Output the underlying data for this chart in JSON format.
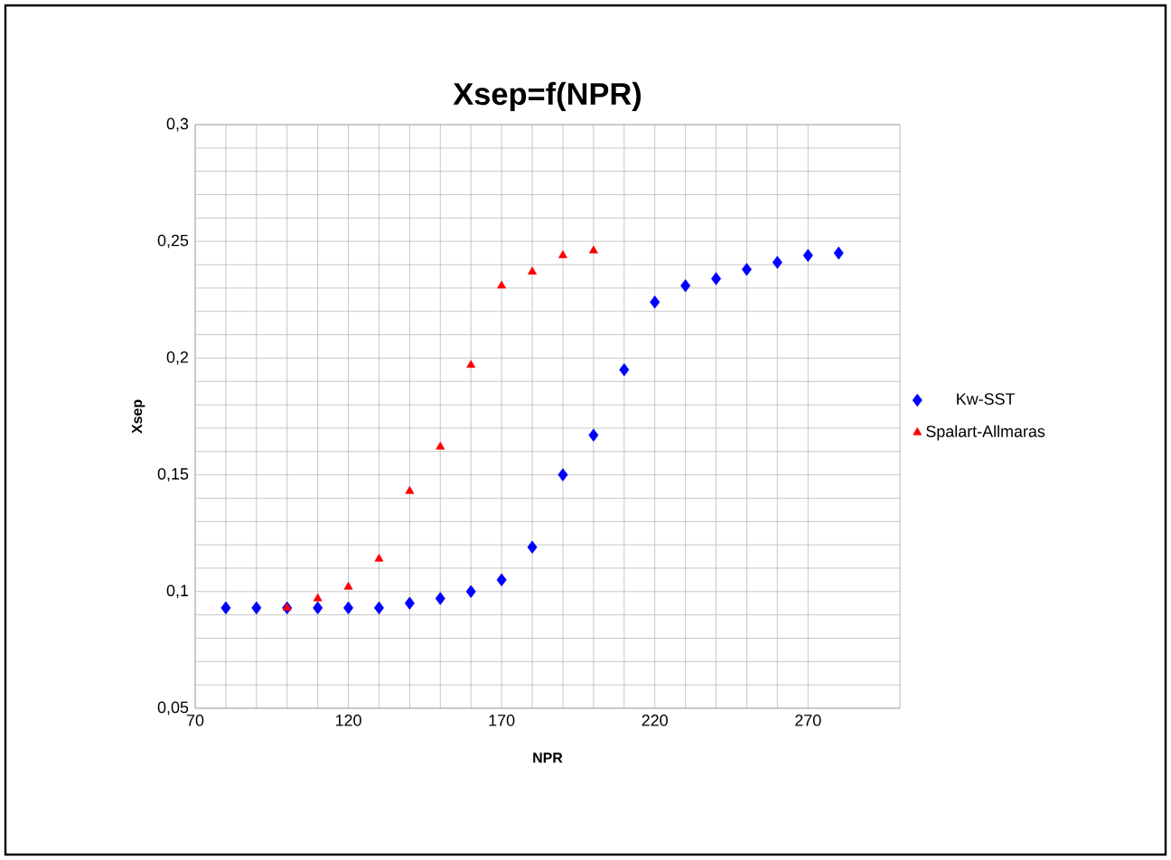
{
  "chart_data": {
    "type": "scatter",
    "title": "Xsep=f(NPR)",
    "xlabel": "NPR",
    "ylabel": "Xsep",
    "x": [
      80,
      90,
      100,
      110,
      120,
      130,
      140,
      150,
      160,
      170,
      180,
      190,
      200,
      210,
      220,
      230,
      240,
      250,
      260,
      270,
      280
    ],
    "series": [
      {
        "name": "Kw-SST",
        "color": "#0000ff",
        "marker": "diamond",
        "values": [
          0.093,
          0.093,
          0.093,
          0.093,
          0.093,
          0.093,
          0.095,
          0.097,
          0.1,
          0.105,
          0.119,
          0.15,
          0.167,
          0.195,
          0.224,
          0.231,
          0.234,
          0.238,
          0.241,
          0.244,
          0.245
        ]
      },
      {
        "name": "Spalart-Allmaras",
        "color": "#ff0000",
        "marker": "triangle",
        "x": [
          100,
          110,
          120,
          130,
          140,
          150,
          160,
          170,
          180,
          190,
          200
        ],
        "values": [
          0.093,
          0.097,
          0.102,
          0.114,
          0.143,
          0.162,
          0.197,
          0.231,
          0.237,
          0.244,
          0.246
        ]
      }
    ],
    "xlim": [
      70,
      300
    ],
    "xticks": [
      70,
      120,
      170,
      220,
      270
    ],
    "ylim": [
      0.05,
      0.3
    ],
    "yticks": [
      {
        "value": 0.05,
        "label": "0,05"
      },
      {
        "value": 0.1,
        "label": "0,1"
      },
      {
        "value": 0.15,
        "label": "0,15"
      },
      {
        "value": 0.2,
        "label": "0,2"
      },
      {
        "value": 0.25,
        "label": "0,25"
      },
      {
        "value": 0.3,
        "label": "0,3"
      }
    ],
    "grid": true,
    "legend": "right"
  }
}
